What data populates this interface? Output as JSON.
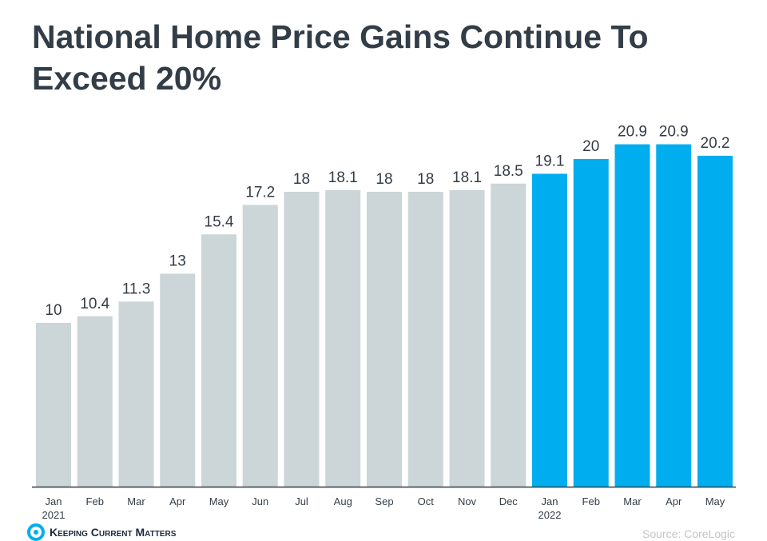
{
  "chart_data": {
    "type": "bar",
    "title": "National Home Price Gains Continue To Exceed 20%",
    "categories": [
      "Jan 2021",
      "Feb",
      "Mar",
      "Apr",
      "May",
      "Jun",
      "Jul",
      "Aug",
      "Sep",
      "Oct",
      "Nov",
      "Dec",
      "Jan 2022",
      "Feb",
      "Mar",
      "Apr",
      "May"
    ],
    "values": [
      10,
      10.4,
      11.3,
      13,
      15.4,
      17.2,
      18,
      18.1,
      18,
      18,
      18.1,
      18.5,
      19.1,
      20,
      20.9,
      20.9,
      20.2
    ],
    "xlabel": "",
    "ylabel": "",
    "ylim": [
      0,
      29
    ],
    "grid": false,
    "colors": {
      "2021": "#ccd5d8",
      "2022": "#00aeef",
      "axis": "#333d47",
      "labels": "#333d47"
    }
  },
  "footer": {
    "logo_text": "Keeping Current Matters",
    "source": "Source: CoreLogic"
  }
}
